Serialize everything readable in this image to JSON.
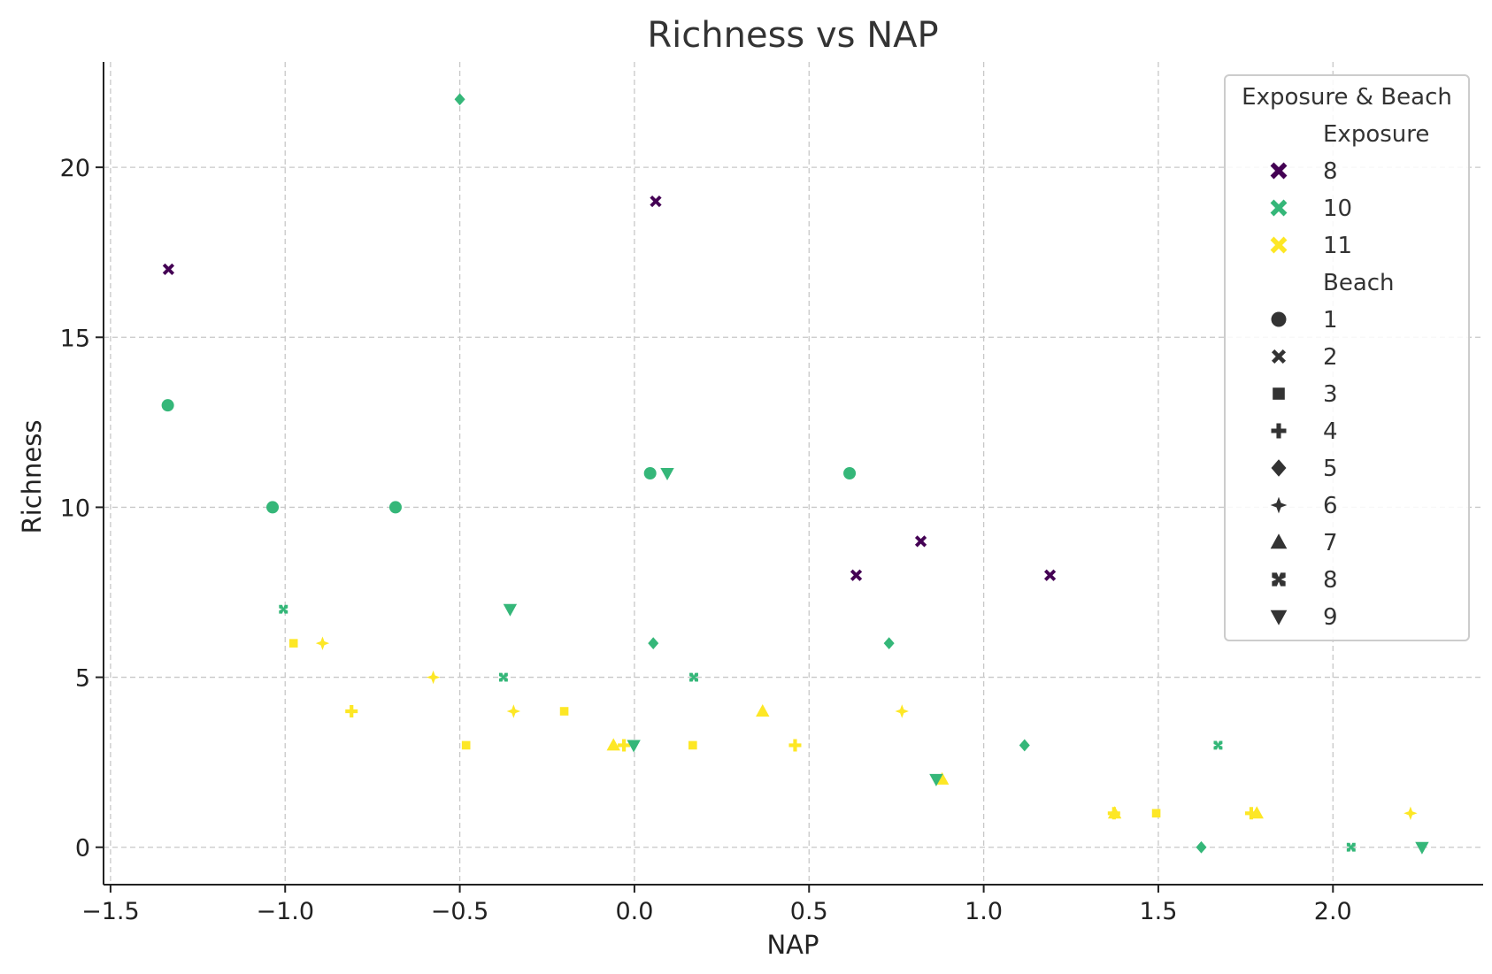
{
  "chart_data": {
    "type": "scatter",
    "title": "Richness vs NAP",
    "xlabel": "NAP",
    "ylabel": "Richness",
    "xlim": [
      -1.52,
      2.43
    ],
    "ylim": [
      -1.1,
      23.1
    ],
    "xticks": [
      -1.5,
      -1.0,
      -0.5,
      0.0,
      0.5,
      1.0,
      1.5,
      2.0
    ],
    "xtick_labels": [
      "−1.5",
      "−1.0",
      "−0.5",
      "0.0",
      "0.5",
      "1.0",
      "1.5",
      "2.0"
    ],
    "yticks": [
      0,
      5,
      10,
      15,
      20
    ],
    "ytick_labels": [
      "0",
      "5",
      "10",
      "15",
      "20"
    ],
    "grid": true,
    "legend": {
      "placement": "top-right",
      "title": "Exposure & Beach",
      "hue_title": "Exposure",
      "hue_entries": [
        {
          "label": "8",
          "color": "#440154"
        },
        {
          "label": "10",
          "color": "#35b779"
        },
        {
          "label": "11",
          "color": "#fde725"
        }
      ],
      "style_title": "Beach",
      "style_entries": [
        {
          "label": "1",
          "marker": "circle"
        },
        {
          "label": "2",
          "marker": "x"
        },
        {
          "label": "3",
          "marker": "square"
        },
        {
          "label": "4",
          "marker": "plus"
        },
        {
          "label": "5",
          "marker": "diamond"
        },
        {
          "label": "6",
          "marker": "star4"
        },
        {
          "label": "7",
          "marker": "triangle-up"
        },
        {
          "label": "8",
          "marker": "bowtie"
        },
        {
          "label": "9",
          "marker": "triangle-down"
        }
      ]
    },
    "points": [
      {
        "x": 0.045,
        "y": 11,
        "exposure": "10",
        "beach": "1"
      },
      {
        "x": -1.036,
        "y": 10,
        "exposure": "10",
        "beach": "1"
      },
      {
        "x": -1.336,
        "y": 13,
        "exposure": "10",
        "beach": "1"
      },
      {
        "x": 0.616,
        "y": 11,
        "exposure": "10",
        "beach": "1"
      },
      {
        "x": -0.684,
        "y": 10,
        "exposure": "10",
        "beach": "1"
      },
      {
        "x": 1.19,
        "y": 8,
        "exposure": "8",
        "beach": "2"
      },
      {
        "x": 0.82,
        "y": 9,
        "exposure": "8",
        "beach": "2"
      },
      {
        "x": 0.635,
        "y": 8,
        "exposure": "8",
        "beach": "2"
      },
      {
        "x": 0.061,
        "y": 19,
        "exposure": "8",
        "beach": "2"
      },
      {
        "x": -1.334,
        "y": 17,
        "exposure": "8",
        "beach": "2"
      },
      {
        "x": -0.976,
        "y": 6,
        "exposure": "11",
        "beach": "3"
      },
      {
        "x": -0.201,
        "y": 4,
        "exposure": "11",
        "beach": "3"
      },
      {
        "x": -0.482,
        "y": 3,
        "exposure": "11",
        "beach": "3"
      },
      {
        "x": 0.167,
        "y": 3,
        "exposure": "11",
        "beach": "3"
      },
      {
        "x": 1.494,
        "y": 1,
        "exposure": "11",
        "beach": "3"
      },
      {
        "x": -0.81,
        "y": 4,
        "exposure": "11",
        "beach": "4"
      },
      {
        "x": 0.46,
        "y": 3,
        "exposure": "11",
        "beach": "4"
      },
      {
        "x": -0.03,
        "y": 3,
        "exposure": "11",
        "beach": "4"
      },
      {
        "x": 1.766,
        "y": 1,
        "exposure": "11",
        "beach": "4"
      },
      {
        "x": 1.373,
        "y": 1,
        "exposure": "11",
        "beach": "4"
      },
      {
        "x": 0.054,
        "y": 6,
        "exposure": "10",
        "beach": "5"
      },
      {
        "x": -0.5,
        "y": 22,
        "exposure": "10",
        "beach": "5"
      },
      {
        "x": 0.729,
        "y": 6,
        "exposure": "10",
        "beach": "5"
      },
      {
        "x": 1.117,
        "y": 3,
        "exposure": "10",
        "beach": "5"
      },
      {
        "x": 1.623,
        "y": 0,
        "exposure": "10",
        "beach": "5"
      },
      {
        "x": -0.893,
        "y": 6,
        "exposure": "11",
        "beach": "6"
      },
      {
        "x": -0.576,
        "y": 5,
        "exposure": "11",
        "beach": "6"
      },
      {
        "x": -0.346,
        "y": 4,
        "exposure": "11",
        "beach": "6"
      },
      {
        "x": 0.766,
        "y": 4,
        "exposure": "11",
        "beach": "6"
      },
      {
        "x": 2.222,
        "y": 1,
        "exposure": "11",
        "beach": "6"
      },
      {
        "x": -0.06,
        "y": 3,
        "exposure": "11",
        "beach": "7"
      },
      {
        "x": 0.367,
        "y": 4,
        "exposure": "11",
        "beach": "7"
      },
      {
        "x": 0.881,
        "y": 2,
        "exposure": "11",
        "beach": "7"
      },
      {
        "x": 1.375,
        "y": 1,
        "exposure": "11",
        "beach": "7"
      },
      {
        "x": 1.782,
        "y": 1,
        "exposure": "11",
        "beach": "7"
      },
      {
        "x": -1.005,
        "y": 7,
        "exposure": "10",
        "beach": "8"
      },
      {
        "x": -0.375,
        "y": 5,
        "exposure": "10",
        "beach": "8"
      },
      {
        "x": 0.17,
        "y": 5,
        "exposure": "10",
        "beach": "8"
      },
      {
        "x": 1.671,
        "y": 3,
        "exposure": "10",
        "beach": "8"
      },
      {
        "x": 2.052,
        "y": 0,
        "exposure": "10",
        "beach": "8"
      },
      {
        "x": -0.356,
        "y": 7,
        "exposure": "10",
        "beach": "9"
      },
      {
        "x": 0.094,
        "y": 11,
        "exposure": "10",
        "beach": "9"
      },
      {
        "x": -0.002,
        "y": 3,
        "exposure": "10",
        "beach": "9"
      },
      {
        "x": 0.864,
        "y": 2,
        "exposure": "10",
        "beach": "9"
      },
      {
        "x": 2.255,
        "y": 0,
        "exposure": "10",
        "beach": "9"
      }
    ]
  }
}
